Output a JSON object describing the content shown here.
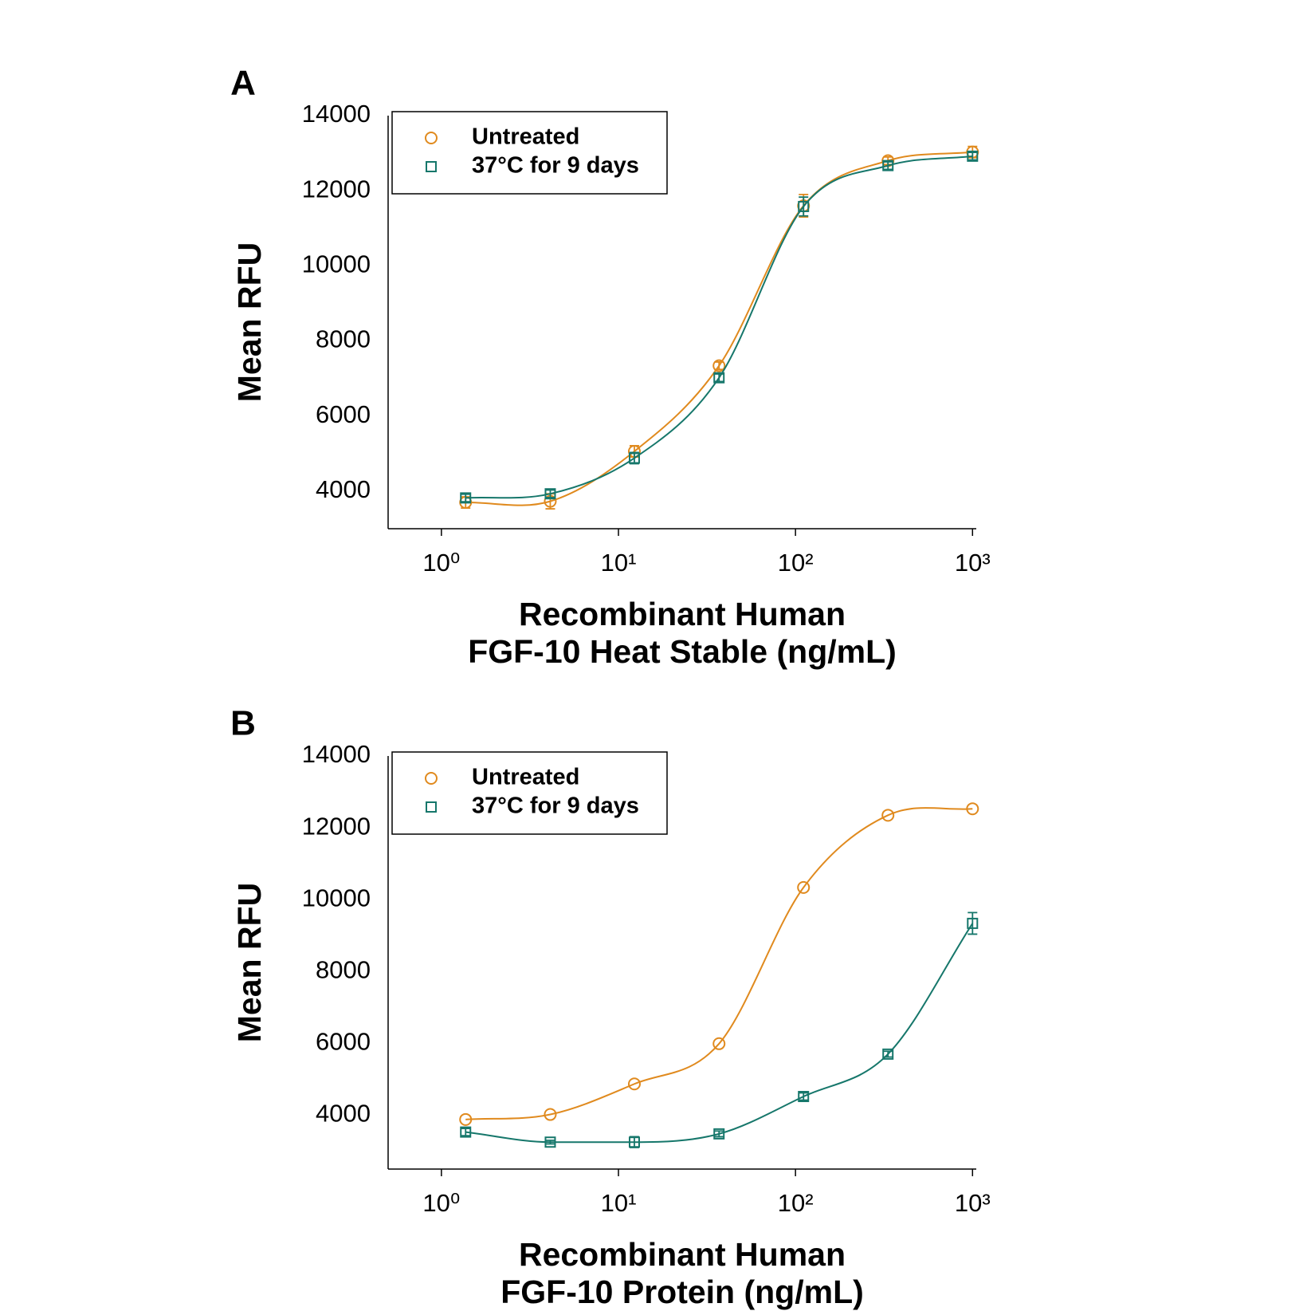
{
  "chart_data": [
    {
      "type": "scatter",
      "panel_label": "A",
      "y_label": "Mean RFU",
      "x_label": [
        "Recombinant Human",
        "FGF-10 Heat Stable (ng/mL)"
      ],
      "x": [
        1.37,
        4.12,
        12.3,
        37,
        111,
        333,
        1000
      ],
      "xscale": "log",
      "xlim": [
        0.5,
        1050
      ],
      "xticks": [
        {
          "value": 1,
          "label": "10⁰"
        },
        {
          "value": 10,
          "label": "10¹"
        },
        {
          "value": 100,
          "label": "10²"
        },
        {
          "value": 1000,
          "label": "10³"
        }
      ],
      "ylim": [
        3000,
        14000
      ],
      "yticks": [
        4000,
        6000,
        8000,
        10000,
        12000,
        14000
      ],
      "legend": "upper left",
      "series": [
        {
          "name": "Untreated",
          "color": "#e08a1e",
          "marker": "circle",
          "values": [
            3700,
            3730,
            5060,
            7340,
            11600,
            12800,
            13030
          ],
          "errors": [
            150,
            200,
            150,
            100,
            300,
            100,
            150
          ]
        },
        {
          "name": "37°C for 9 days",
          "color": "#16776b",
          "marker": "square",
          "values": [
            3820,
            3930,
            4880,
            7020,
            11580,
            12670,
            12920
          ],
          "errors": [
            100,
            100,
            150,
            100,
            250,
            100,
            100
          ]
        }
      ]
    },
    {
      "type": "scatter",
      "panel_label": "B",
      "y_label": "Mean RFU",
      "x_label": [
        "Recombinant Human",
        "FGF-10 Protein (ng/mL)"
      ],
      "x": [
        1.37,
        4.12,
        12.3,
        37,
        111,
        333,
        1000
      ],
      "xscale": "log",
      "xlim": [
        0.5,
        1050
      ],
      "xticks": [
        {
          "value": 1,
          "label": "10⁰"
        },
        {
          "value": 10,
          "label": "10¹"
        },
        {
          "value": 100,
          "label": "10²"
        },
        {
          "value": 1000,
          "label": "10³"
        }
      ],
      "ylim": [
        2500,
        14000
      ],
      "yticks": [
        4000,
        6000,
        8000,
        10000,
        12000,
        14000
      ],
      "legend": "upper left",
      "series": [
        {
          "name": "Untreated",
          "color": "#e08a1e",
          "marker": "circle",
          "values": [
            3880,
            4020,
            4870,
            5990,
            10340,
            12350,
            12530
          ]
        },
        {
          "name": "37°C for 9 days",
          "color": "#16776b",
          "marker": "square",
          "values": [
            3530,
            3250,
            3250,
            3480,
            4520,
            5700,
            9340
          ],
          "errors": [
            100,
            50,
            150,
            80,
            100,
            80,
            300
          ]
        }
      ]
    }
  ]
}
